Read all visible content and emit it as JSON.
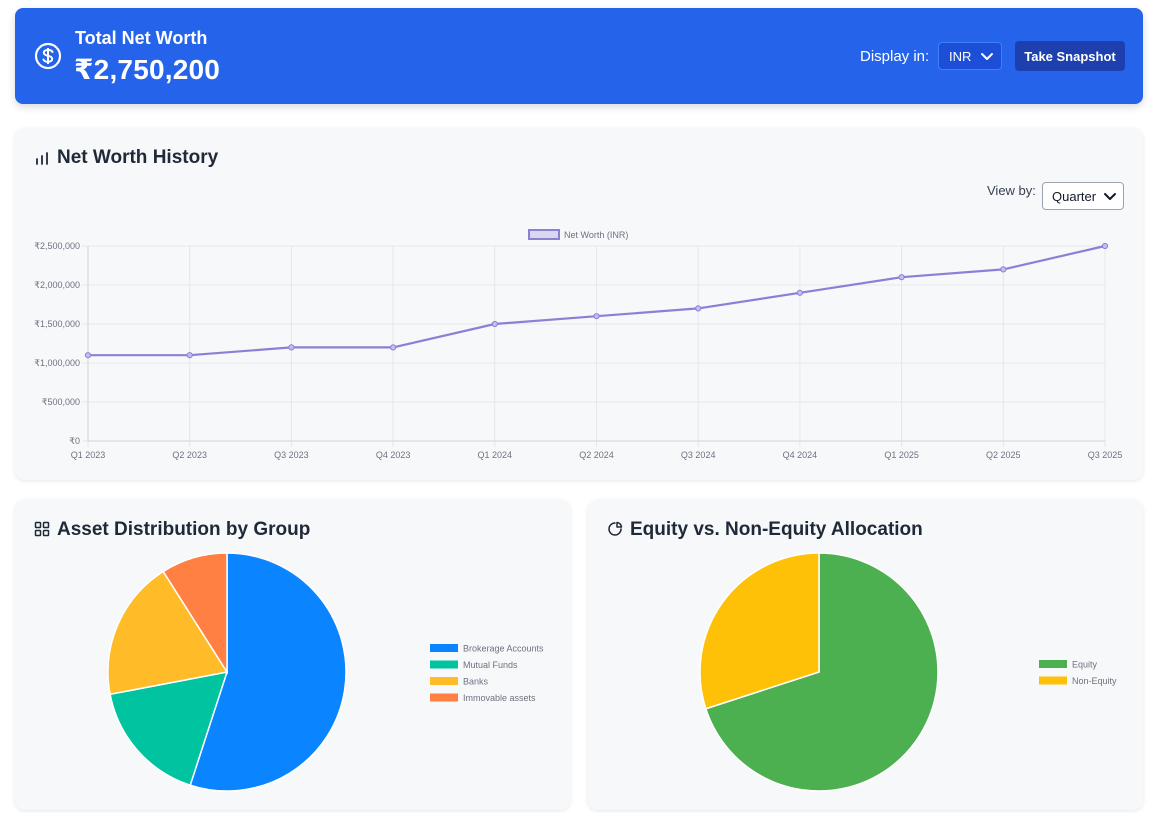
{
  "header": {
    "title": "Total Net Worth",
    "amount": "₹2,750,200",
    "display_label": "Display in:",
    "currency": "INR",
    "snapshot_label": "Take Snapshot",
    "icon": "dollar-circle-icon",
    "bg_color": "#2563eb"
  },
  "history": {
    "title": "Net Worth History",
    "icon": "bar-chart-icon",
    "viewby_label": "View by:",
    "viewby_value": "Quarter"
  },
  "assets": {
    "title": "Asset Distribution by Group",
    "icon": "grid-icon"
  },
  "equity": {
    "title": "Equity vs. Non-Equity Allocation",
    "icon": "pie-chart-icon"
  },
  "chart_data": [
    {
      "type": "line",
      "title": "",
      "x": [
        "Q1 2023",
        "Q2 2023",
        "Q3 2023",
        "Q4 2023",
        "Q1 2024",
        "Q2 2024",
        "Q3 2024",
        "Q4 2024",
        "Q1 2025",
        "Q2 2025",
        "Q3 2025"
      ],
      "series": [
        {
          "name": "Net Worth (INR)",
          "values": [
            1100000,
            1100000,
            1200000,
            1200000,
            1500000,
            1600000,
            1700000,
            1900000,
            2100000,
            2200000,
            2500000
          ],
          "color": "#8b7fd6"
        }
      ],
      "ylim": [
        0,
        2500000
      ],
      "yticks": [
        "₹0",
        "₹500,000",
        "₹1,000,000",
        "₹1,500,000",
        "₹2,000,000",
        "₹2,500,000"
      ],
      "grid": true,
      "legend": "top-center"
    },
    {
      "type": "pie",
      "categories": [
        "Brokerage Accounts",
        "Mutual Funds",
        "Banks",
        "Immovable assets"
      ],
      "values": [
        55,
        17,
        19,
        9
      ],
      "colors": [
        "#0a84ff",
        "#00c49f",
        "#ffbb28",
        "#ff8042"
      ],
      "legend": "right"
    },
    {
      "type": "pie",
      "categories": [
        "Equity",
        "Non-Equity"
      ],
      "values": [
        70,
        30
      ],
      "colors": [
        "#4caf50",
        "#ffc107"
      ],
      "legend": "right"
    }
  ]
}
